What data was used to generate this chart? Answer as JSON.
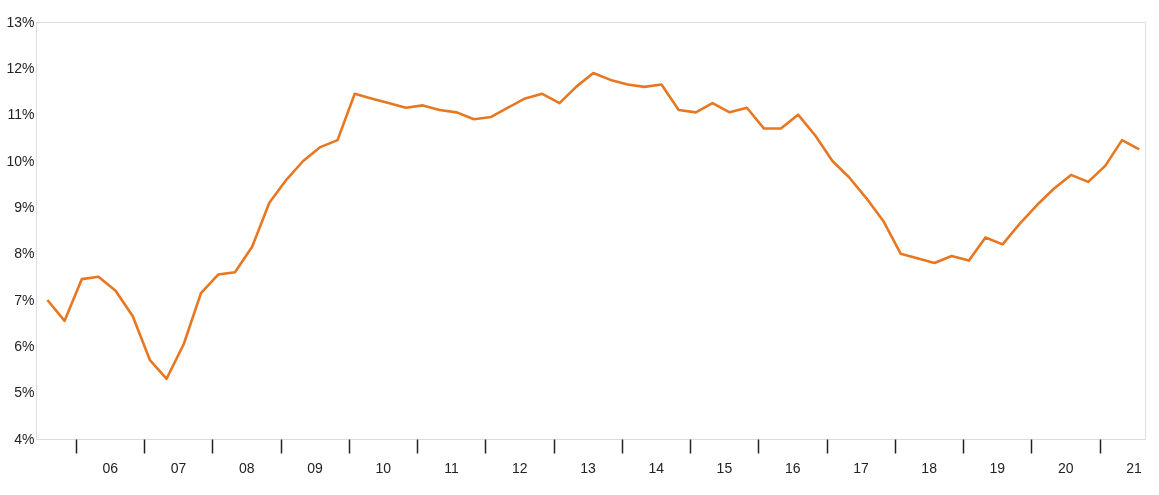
{
  "chart_data": {
    "type": "line",
    "x": [
      "2005-08",
      "2005-11",
      "2006-02",
      "2006-05",
      "2006-08",
      "2006-11",
      "2007-02",
      "2007-05",
      "2007-08",
      "2007-11",
      "2008-02",
      "2008-05",
      "2008-08",
      "2008-11",
      "2009-02",
      "2009-05",
      "2009-08",
      "2009-11",
      "2010-02",
      "2010-05",
      "2010-08",
      "2010-11",
      "2011-02",
      "2011-05",
      "2011-08",
      "2011-11",
      "2012-02",
      "2012-05",
      "2012-08",
      "2012-11",
      "2013-02",
      "2013-05",
      "2013-08",
      "2013-11",
      "2014-02",
      "2014-05",
      "2014-08",
      "2014-11",
      "2015-02",
      "2015-05",
      "2015-08",
      "2015-11",
      "2016-02",
      "2016-05",
      "2016-08",
      "2016-11",
      "2017-02",
      "2017-05",
      "2017-08",
      "2017-11",
      "2018-02",
      "2018-05",
      "2018-08",
      "2018-11",
      "2019-02",
      "2019-05",
      "2019-08",
      "2019-11",
      "2020-02",
      "2020-05",
      "2020-08",
      "2020-11",
      "2021-02",
      "2021-05",
      "2021-08"
    ],
    "series": [
      {
        "color": "#e87722",
        "values": [
          7.0,
          6.55,
          7.45,
          7.5,
          7.2,
          6.65,
          5.7,
          5.3,
          6.05,
          7.15,
          7.55,
          7.6,
          8.15,
          9.1,
          9.6,
          10.0,
          10.3,
          10.45,
          11.45,
          11.35,
          11.25,
          11.15,
          11.2,
          11.1,
          11.05,
          10.9,
          10.95,
          11.15,
          11.35,
          11.45,
          11.25,
          11.6,
          11.9,
          11.75,
          11.65,
          11.6,
          11.65,
          11.1,
          11.05,
          11.25,
          11.05,
          11.15,
          10.7,
          10.7,
          11.0,
          10.55,
          10.0,
          9.65,
          9.2,
          8.7,
          8.0,
          7.9,
          7.8,
          7.95,
          7.85,
          8.35,
          8.2,
          8.65,
          9.05,
          9.4,
          9.7,
          9.55,
          9.9,
          10.45,
          10.25
        ]
      }
    ],
    "xlim": [
      "2005-06",
      "2021-09"
    ],
    "xticks": [
      {
        "value": "2006-01",
        "label": null
      },
      {
        "value": "2006-07",
        "label": "06"
      },
      {
        "value": "2007-01",
        "label": null
      },
      {
        "value": "2007-07",
        "label": "07"
      },
      {
        "value": "2008-01",
        "label": null
      },
      {
        "value": "2008-07",
        "label": "08"
      },
      {
        "value": "2009-01",
        "label": null
      },
      {
        "value": "2009-07",
        "label": "09"
      },
      {
        "value": "2010-01",
        "label": null
      },
      {
        "value": "2010-07",
        "label": "10"
      },
      {
        "value": "2011-01",
        "label": null
      },
      {
        "value": "2011-07",
        "label": "11"
      },
      {
        "value": "2012-01",
        "label": null
      },
      {
        "value": "2012-07",
        "label": "12"
      },
      {
        "value": "2013-01",
        "label": null
      },
      {
        "value": "2013-07",
        "label": "13"
      },
      {
        "value": "2014-01",
        "label": null
      },
      {
        "value": "2014-07",
        "label": "14"
      },
      {
        "value": "2015-01",
        "label": null
      },
      {
        "value": "2015-07",
        "label": "15"
      },
      {
        "value": "2016-01",
        "label": null
      },
      {
        "value": "2016-07",
        "label": "16"
      },
      {
        "value": "2017-01",
        "label": null
      },
      {
        "value": "2017-07",
        "label": "17"
      },
      {
        "value": "2018-01",
        "label": null
      },
      {
        "value": "2018-07",
        "label": "18"
      },
      {
        "value": "2019-01",
        "label": null
      },
      {
        "value": "2019-07",
        "label": "19"
      },
      {
        "value": "2020-01",
        "label": null
      },
      {
        "value": "2020-07",
        "label": "20"
      },
      {
        "value": "2021-01",
        "label": null
      },
      {
        "value": "2021-07",
        "label": "21"
      }
    ],
    "ylim": [
      4,
      13
    ],
    "yticks": [
      {
        "value": 4,
        "label": "4%"
      },
      {
        "value": 5,
        "label": "5%"
      },
      {
        "value": 6,
        "label": "6%"
      },
      {
        "value": 7,
        "label": "7%"
      },
      {
        "value": 8,
        "label": "8%"
      },
      {
        "value": 9,
        "label": "9%"
      },
      {
        "value": 10,
        "label": "10%"
      },
      {
        "value": 11,
        "label": "11%"
      },
      {
        "value": 12,
        "label": "12%"
      },
      {
        "value": 13,
        "label": "13%"
      }
    ],
    "grid": false,
    "marker": "none",
    "line_style": "solid"
  }
}
